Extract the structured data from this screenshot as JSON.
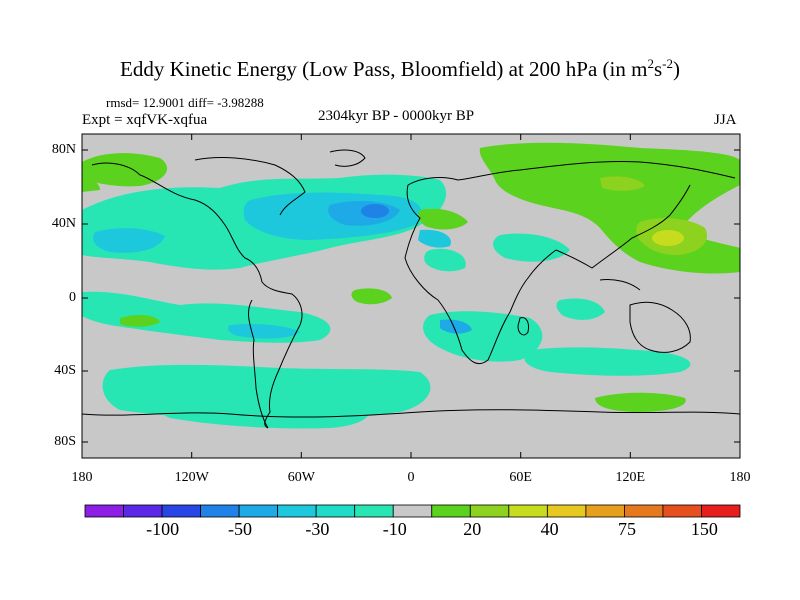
{
  "title": {
    "main": "Eddy Kinetic Energy (Low Pass, Bloomfield) at 200 hPa (in m",
    "exp1": "2",
    "mid": "s",
    "exp2": "-2",
    "end": ")"
  },
  "stats": "rmsd= 12.9001 diff= -3.98288",
  "experiment": "Expt = xqfVK-xqfua",
  "period": "2304kyr BP - 0000kyr BP",
  "season": "JJA",
  "lat_labels": [
    "80N",
    "40N",
    "0",
    "40S",
    "80S"
  ],
  "lon_labels": [
    "180",
    "120W",
    "60W",
    "0",
    "60E",
    "120E",
    "180"
  ],
  "colorbar": {
    "labels": [
      "-100",
      "-50",
      "-30",
      "-10",
      "20",
      "40",
      "75",
      "150"
    ],
    "colors": [
      "#8c1ee6",
      "#5a28e6",
      "#2846e6",
      "#1e82e6",
      "#1eaae6",
      "#1ec8dc",
      "#1edcc8",
      "#28e6b4",
      "#c8c8c8",
      "#5ad21e",
      "#8cd21e",
      "#c8dc1e",
      "#e6c81e",
      "#e6a01e",
      "#e6781e",
      "#e6501e",
      "#e61e1e"
    ]
  },
  "map_colors": {
    "background": "#c8c8c8",
    "light_blue": "#28e6b4",
    "mid_blue": "#1ec8dc",
    "blue": "#1eaae6",
    "dark_blue": "#1e82e6",
    "green": "#5ad21e",
    "light_green": "#8cd21e",
    "yellow": "#c8dc1e"
  }
}
